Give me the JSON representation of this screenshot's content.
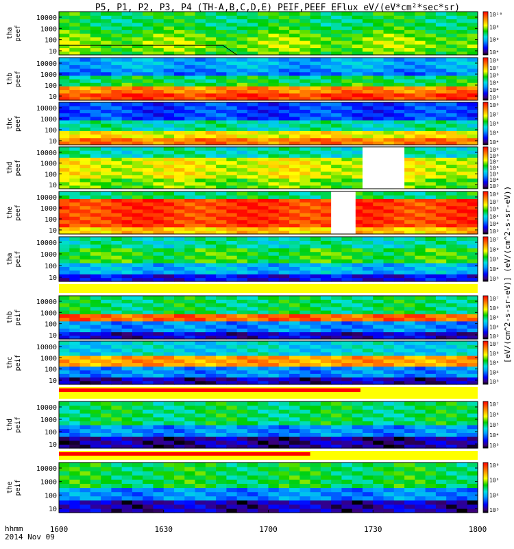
{
  "title": "P5, P1, P2, P3, P4 (TH-A,B,C,D,E) PEIF,PEEF EFlux eV/(eV*cm²*sec*sr)",
  "x_axis": {
    "label_line1": "hhmm",
    "label_line2": "2014 Nov 09",
    "ticks": [
      "1600",
      "1630",
      "1700",
      "1730",
      "1800"
    ]
  },
  "colorbar_label": "[eV/(cm^2-s-sr-eV)] (eV/(cm^2-s-sr-eV))",
  "chart_data": {
    "type": "heatmap",
    "x_range": [
      "1600",
      "1800"
    ],
    "y_scale": "log",
    "y_ticks": [
      "10",
      "100",
      "1000",
      "10000"
    ],
    "panels": [
      {
        "probe": "tha",
        "species": "peef",
        "ylabel_top": "tha",
        "ylabel_bottom": "peef",
        "cbar_ticks": [
          "10^4",
          "10^6",
          "10^8",
          "10^10"
        ],
        "cbar_range": [
          1000.0,
          10000000000.0
        ],
        "gap": null,
        "overlay_line": true
      },
      {
        "probe": "thb",
        "species": "peef",
        "ylabel_top": "thb",
        "ylabel_bottom": "peef",
        "cbar_ticks": [
          "10^3",
          "10^4",
          "10^5",
          "10^6",
          "10^7",
          "10^8"
        ],
        "cbar_range": [
          1000.0,
          100000000.0
        ],
        "gap": null
      },
      {
        "probe": "thc",
        "species": "peef",
        "ylabel_top": "thc",
        "ylabel_bottom": "peef",
        "cbar_ticks": [
          "10^4",
          "10^5",
          "10^6",
          "10^7",
          "10^8"
        ],
        "cbar_range": [
          1000.0,
          1000000000.0
        ],
        "gap": null
      },
      {
        "probe": "thd",
        "species": "peef",
        "ylabel_top": "thd",
        "ylabel_bottom": "peef",
        "cbar_ticks": [
          "10^3",
          "10^4",
          "10^5",
          "10^6",
          "10^7",
          "10^8",
          "10^9"
        ],
        "cbar_range": [
          1000.0,
          1000000000.0
        ],
        "gap": [
          "1727",
          "1739"
        ]
      },
      {
        "probe": "the",
        "species": "peef",
        "ylabel_top": "the",
        "ylabel_bottom": "peef",
        "cbar_ticks": [
          "10^3",
          "10^4",
          "10^5",
          "10^6",
          "10^7",
          "10^8"
        ],
        "cbar_range": [
          1000.0,
          100000000.0
        ],
        "gap": [
          "1718",
          "1725"
        ]
      },
      {
        "probe": "tha",
        "species": "peif",
        "ylabel_top": "tha",
        "ylabel_bottom": "peif",
        "cbar_ticks": [
          "10^3",
          "10^4",
          "10^5",
          "10^6",
          "10^7"
        ],
        "cbar_range": [
          1000.0,
          10000000.0
        ],
        "gap": null
      },
      {
        "probe": "thb",
        "species": "peif",
        "ylabel_top": "thb",
        "ylabel_bottom": "peif",
        "cbar_ticks": [
          "10^3",
          "10^4",
          "10^5",
          "10^6",
          "10^7"
        ],
        "cbar_range": [
          1000.0,
          10000000.0
        ],
        "gap": null
      },
      {
        "probe": "thc",
        "species": "peif",
        "ylabel_top": "thc",
        "ylabel_bottom": "peif",
        "cbar_ticks": [
          "10^3",
          "10^4",
          "10^5",
          "10^6",
          "10^7"
        ],
        "cbar_range": [
          1000.0,
          10000000.0
        ],
        "gap": null
      },
      {
        "probe": "thd",
        "species": "peif",
        "ylabel_top": "thd",
        "ylabel_bottom": "peif",
        "cbar_ticks": [
          "10^3",
          "10^4",
          "10^5",
          "10^6",
          "10^7"
        ],
        "cbar_range": [
          1000.0,
          10000000.0
        ],
        "gap": null
      },
      {
        "probe": "the",
        "species": "peif",
        "ylabel_top": "the",
        "ylabel_bottom": "peif",
        "cbar_ticks": [
          "10^3",
          "10^4",
          "10^5",
          "10^6"
        ],
        "cbar_range": [
          1000.0,
          1000000.0
        ],
        "gap": null
      }
    ]
  }
}
